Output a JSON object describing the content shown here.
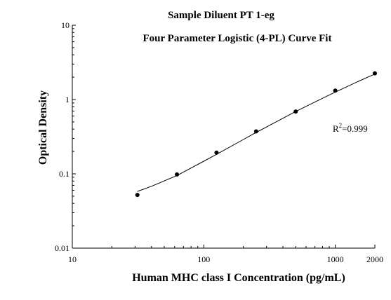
{
  "chart_data": {
    "type": "scatter",
    "title": "Sample Diluent PT 1-eg",
    "subtitle": "Four Parameter Logistic (4-PL) Curve Fit",
    "xlabel": "Human MHC class I Concentration (pg/mL)",
    "ylabel": "Optical Density",
    "x_scale": "log",
    "y_scale": "log",
    "xlim": [
      10,
      2000
    ],
    "ylim": [
      0.01,
      10
    ],
    "x_ticks": [
      "10",
      "100",
      "1000",
      "2000"
    ],
    "x_tick_values": [
      10,
      100,
      1000,
      2000
    ],
    "y_ticks": [
      "10",
      "1",
      "0.1",
      "0.01"
    ],
    "y_tick_values": [
      10,
      1,
      0.1,
      0.01
    ],
    "grid": false,
    "legend": "none",
    "annotation_prefix": "R",
    "annotation_sup": "2",
    "annotation_value": "=0.999",
    "series": [
      {
        "points": [
          {
            "x": 31.25,
            "y": 0.052
          },
          {
            "x": 62.5,
            "y": 0.098
          },
          {
            "x": 125,
            "y": 0.193
          },
          {
            "x": 250,
            "y": 0.372
          },
          {
            "x": 500,
            "y": 0.69
          },
          {
            "x": 1000,
            "y": 1.32
          },
          {
            "x": 2000,
            "y": 2.25
          }
        ]
      }
    ],
    "fit_curve": {
      "x": [
        31.25,
        40,
        62.5,
        100,
        125,
        200,
        250,
        400,
        500,
        800,
        1000,
        1500,
        2000
      ],
      "y": [
        0.058,
        0.068,
        0.095,
        0.148,
        0.183,
        0.29,
        0.36,
        0.56,
        0.69,
        1.04,
        1.26,
        1.76,
        2.2
      ]
    },
    "colors": {
      "marker": "#000000",
      "curve": "#000000",
      "axis": "#000000"
    }
  }
}
